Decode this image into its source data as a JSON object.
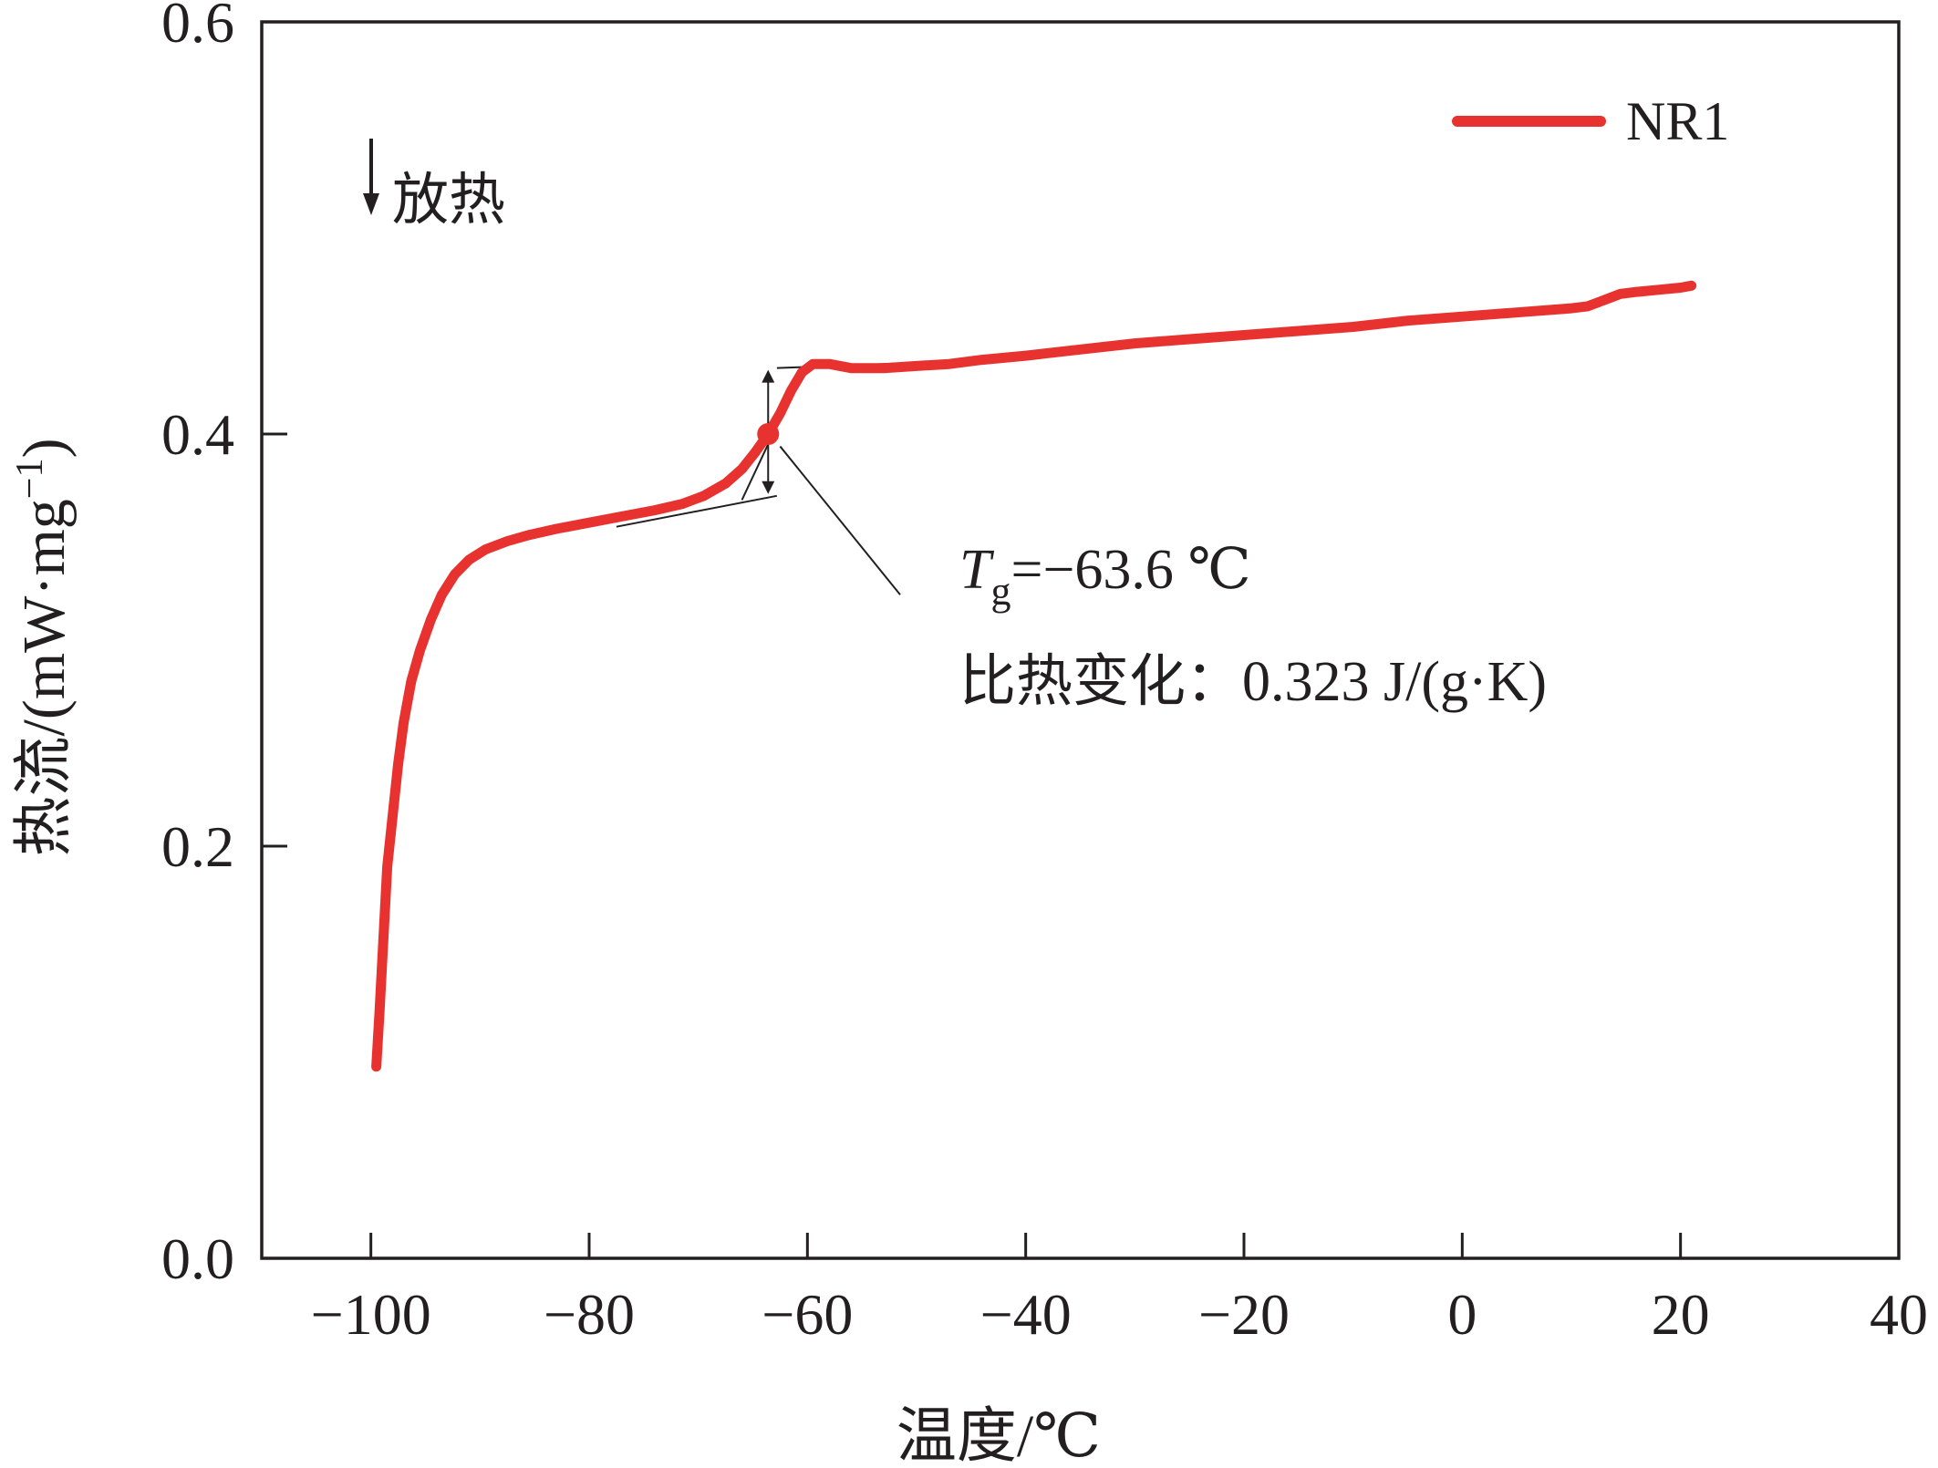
{
  "chart_data": {
    "type": "line",
    "xlabel": "温度/℃",
    "ylabel": "热流/(mW·mg",
    "ylabel_sup": "−1",
    "ylabel_close": ")",
    "xlim": [
      -110,
      40
    ],
    "ylim": [
      0.0,
      0.6
    ],
    "x_ticks": [
      -100,
      -80,
      -60,
      -40,
      -20,
      0,
      20,
      40
    ],
    "x_tick_labels": [
      "−100",
      "−80",
      "−60",
      "−40",
      "−20",
      "0",
      "20",
      "40"
    ],
    "y_ticks": [
      0.0,
      0.2,
      0.4,
      0.6
    ],
    "y_tick_labels": [
      "0.0",
      "0.2",
      "0.4",
      "0.6"
    ],
    "grid": false,
    "legend_position": "top-right",
    "color": "#e8322f",
    "series": [
      {
        "name": "NR1",
        "color": "#e8322f",
        "points": [
          [
            -99.5,
            0.093
          ],
          [
            -99.2,
            0.12
          ],
          [
            -98.9,
            0.15
          ],
          [
            -98.5,
            0.19
          ],
          [
            -98.0,
            0.215
          ],
          [
            -97.5,
            0.24
          ],
          [
            -97.0,
            0.26
          ],
          [
            -96.3,
            0.28
          ],
          [
            -95.5,
            0.295
          ],
          [
            -94.5,
            0.31
          ],
          [
            -93.5,
            0.322
          ],
          [
            -92.3,
            0.332
          ],
          [
            -91.0,
            0.339
          ],
          [
            -89.5,
            0.344
          ],
          [
            -87.5,
            0.348
          ],
          [
            -85.5,
            0.351
          ],
          [
            -83.0,
            0.354
          ],
          [
            -80.0,
            0.357
          ],
          [
            -77.0,
            0.36
          ],
          [
            -74.0,
            0.363
          ],
          [
            -71.5,
            0.366
          ],
          [
            -69.5,
            0.37
          ],
          [
            -67.5,
            0.376
          ],
          [
            -66.0,
            0.383
          ],
          [
            -64.8,
            0.391
          ],
          [
            -63.6,
            0.4
          ],
          [
            -62.5,
            0.41
          ],
          [
            -61.5,
            0.421
          ],
          [
            -60.5,
            0.43
          ],
          [
            -59.5,
            0.434
          ],
          [
            -58.0,
            0.434
          ],
          [
            -56.0,
            0.432
          ],
          [
            -53.0,
            0.432
          ],
          [
            -50.0,
            0.433
          ],
          [
            -47.0,
            0.434
          ],
          [
            -44.0,
            0.436
          ],
          [
            -40.0,
            0.438
          ],
          [
            -35.0,
            0.441
          ],
          [
            -30.0,
            0.444
          ],
          [
            -25.0,
            0.446
          ],
          [
            -20.0,
            0.448
          ],
          [
            -15.0,
            0.45
          ],
          [
            -10.0,
            0.452
          ],
          [
            -5.0,
            0.455
          ],
          [
            0.0,
            0.457
          ],
          [
            5.0,
            0.459
          ],
          [
            10.0,
            0.461
          ],
          [
            11.5,
            0.462
          ],
          [
            13.0,
            0.465
          ],
          [
            14.5,
            0.468
          ],
          [
            16.0,
            0.469
          ],
          [
            18.0,
            0.47
          ],
          [
            20.0,
            0.471
          ],
          [
            21.0,
            0.472
          ]
        ]
      }
    ],
    "tangent_lines": [
      {
        "from": [
          -77.5,
          0.355
        ],
        "to": [
          -62.8,
          0.37
        ]
      },
      {
        "from": [
          -62.8,
          0.432
        ],
        "to": [
          -48.0,
          0.435
        ]
      },
      {
        "from": [
          -66.0,
          0.368
        ],
        "to": [
          -60.5,
          0.43
        ]
      }
    ],
    "step_arrow": {
      "x": -63.6,
      "y_low": 0.37,
      "y_high": 0.432
    },
    "tg_marker": {
      "x": -63.6,
      "y": 0.4
    },
    "callout_line": {
      "from": [
        -62.5,
        0.394
      ],
      "to": [
        -51.5,
        0.322
      ]
    },
    "annotations": {
      "exo_arrow": "↓",
      "exo_label": "放热",
      "tg_symbol": "T",
      "tg_subscript": "g",
      "tg_value": "=−63.6 ℃",
      "heat_capacity": "比热变化：0.323 J/(g·K)"
    }
  }
}
